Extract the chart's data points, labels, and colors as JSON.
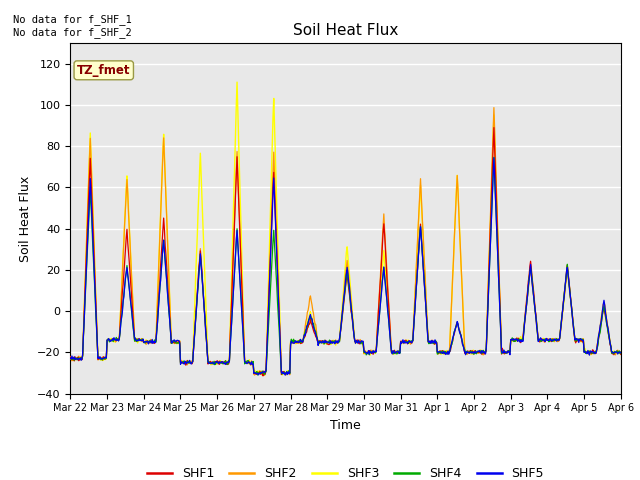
{
  "title": "Soil Heat Flux",
  "xlabel": "Time",
  "ylabel": "Soil Heat Flux",
  "ylim": [
    -40,
    130
  ],
  "yticks": [
    -40,
    -20,
    0,
    20,
    40,
    60,
    80,
    100,
    120
  ],
  "annotation_text": "No data for f_SHF_1\nNo data for f_SHF_2",
  "tz_label": "TZ_fmet",
  "colors": {
    "SHF1": "#dd0000",
    "SHF2": "#ff9900",
    "SHF3": "#ffff00",
    "SHF4": "#00aa00",
    "SHF5": "#0000ee"
  },
  "bg_color": "#e8e8e8",
  "x_tick_labels": [
    "Mar 22",
    "Mar 23",
    "Mar 24",
    "Mar 25",
    "Mar 26",
    "Mar 27",
    "Mar 28",
    "Mar 29",
    "Mar 30",
    "Mar 31",
    "Apr 1",
    "Apr 2",
    "Apr 3",
    "Apr 4",
    "Apr 5",
    "Apr 6"
  ],
  "n_days": 16,
  "figsize": [
    6.4,
    4.8
  ],
  "dpi": 100
}
